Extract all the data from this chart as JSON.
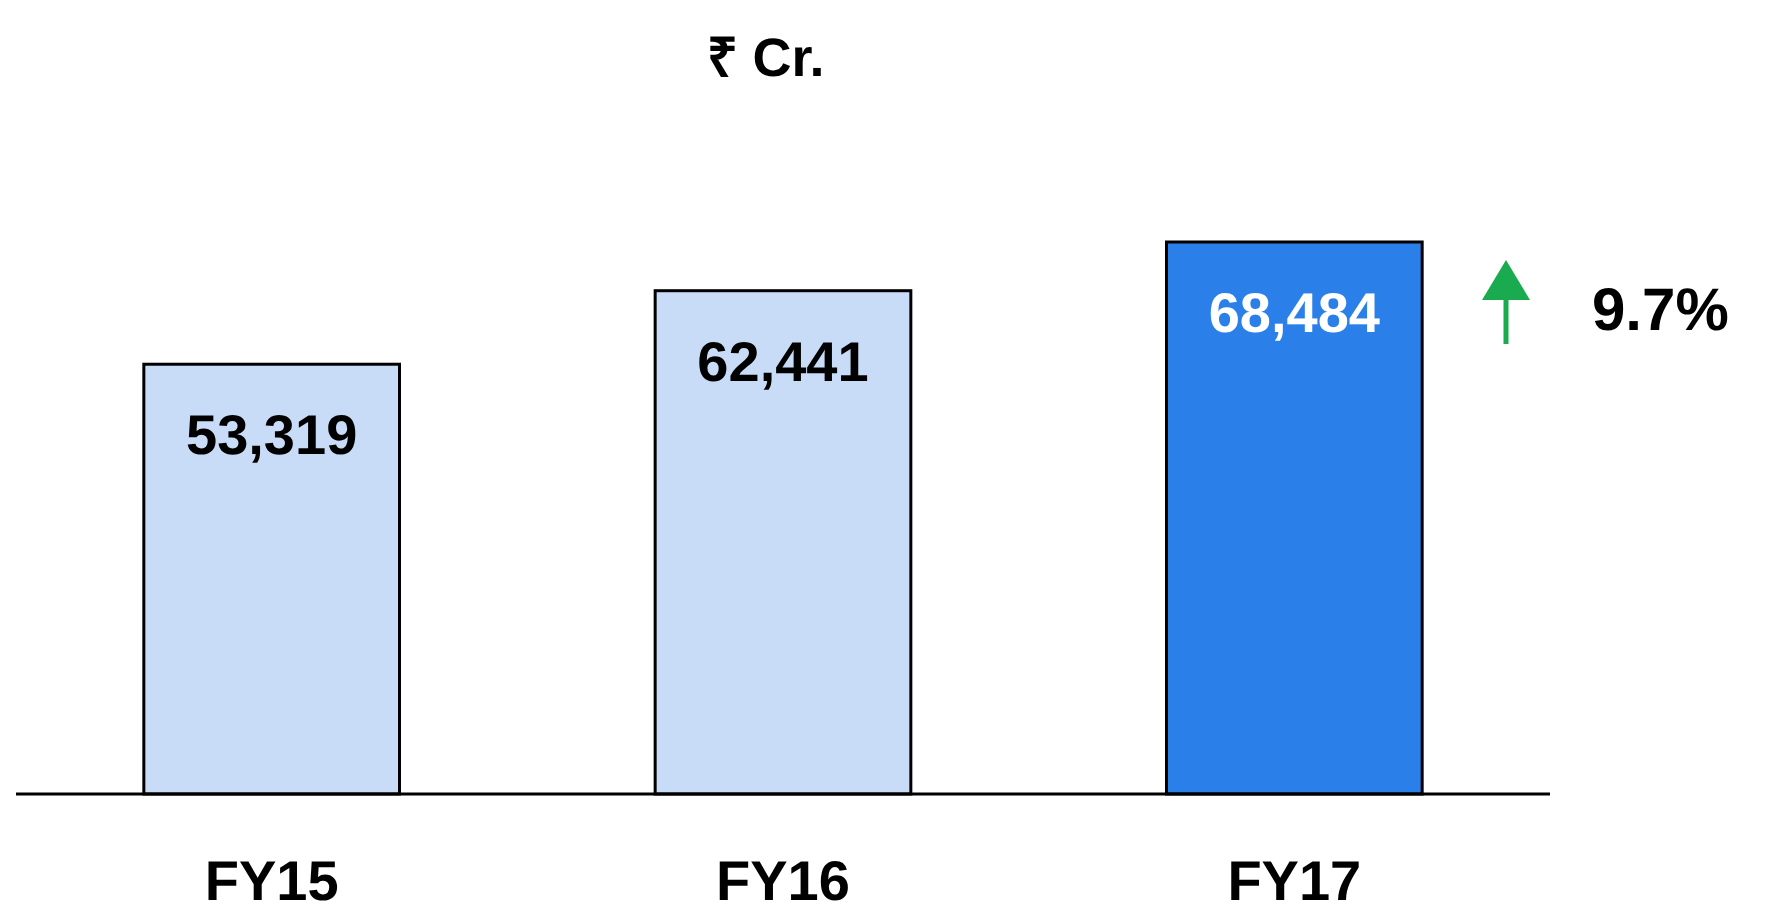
{
  "chart_data": {
    "type": "bar",
    "title": "₹ Cr.",
    "categories": [
      "FY15",
      "FY16",
      "FY17"
    ],
    "values": [
      53319,
      62441,
      68484
    ],
    "colors": [
      "#c9dcf7",
      "#c9dcf7",
      "#2a7fe8"
    ],
    "value_labels": [
      "53,319",
      "62,441",
      "68,484"
    ],
    "annotations": [
      "9.7%"
    ]
  }
}
